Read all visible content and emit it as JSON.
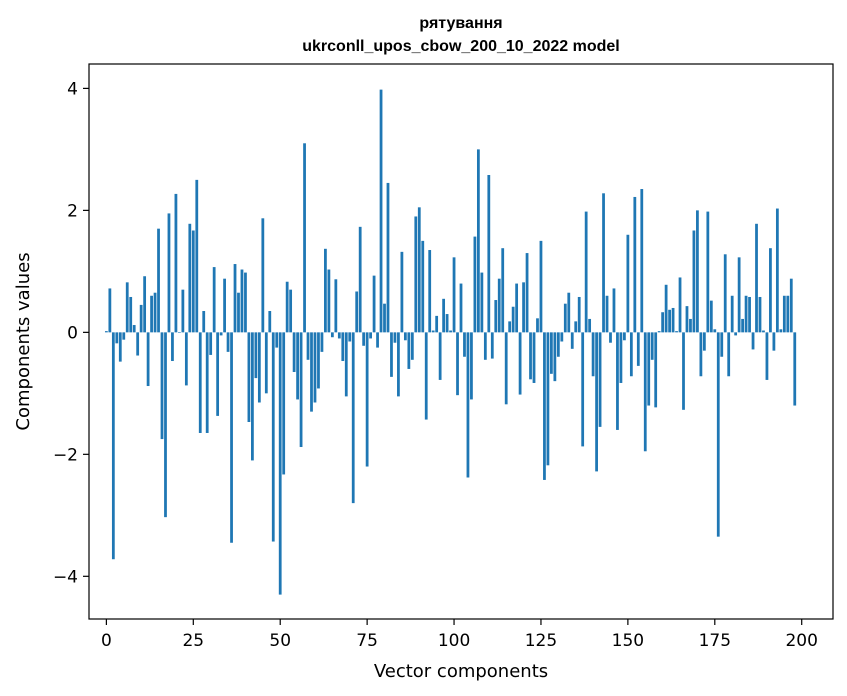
{
  "chart_data": {
    "type": "bar",
    "title": "рятування",
    "subtitle": "ukrconll_upos_cbow_200_10_2022 model",
    "xlabel": "Vector components",
    "ylabel": "Components values",
    "xlim": [
      -5,
      209
    ],
    "ylim": [
      -4.7,
      4.4
    ],
    "xticks": [
      0,
      25,
      50,
      75,
      100,
      125,
      150,
      175,
      200
    ],
    "yticks": [
      -4,
      -2,
      0,
      2,
      4
    ],
    "bar_color": "#1f77b4",
    "series": [
      {
        "name": "components",
        "values": [
          0.02,
          0.72,
          -3.72,
          -0.18,
          -0.48,
          -0.12,
          0.82,
          0.58,
          0.12,
          -0.38,
          0.45,
          0.92,
          -0.88,
          0.6,
          0.65,
          1.7,
          -1.75,
          -3.03,
          1.95,
          -0.47,
          2.27,
          0.0,
          0.7,
          -0.87,
          1.78,
          1.67,
          2.5,
          -1.65,
          0.35,
          -1.65,
          -0.37,
          1.07,
          -1.37,
          -0.05,
          0.88,
          -0.32,
          -3.45,
          1.12,
          0.65,
          1.03,
          0.98,
          -1.47,
          -2.1,
          -0.75,
          -1.15,
          1.87,
          -1.0,
          0.35,
          -3.43,
          -0.25,
          -4.3,
          -2.33,
          0.83,
          0.7,
          -0.65,
          -1.1,
          -1.88,
          3.1,
          -0.45,
          -1.3,
          -1.15,
          -0.92,
          -0.32,
          1.37,
          1.03,
          -0.08,
          0.87,
          -0.1,
          -0.47,
          -1.05,
          -0.15,
          -2.8,
          0.67,
          1.73,
          -0.22,
          -2.2,
          -0.1,
          0.93,
          -0.25,
          3.98,
          0.47,
          2.45,
          -0.73,
          -0.17,
          -1.05,
          1.32,
          -0.13,
          -0.6,
          -0.45,
          1.9,
          2.05,
          1.5,
          -1.43,
          1.35,
          0.03,
          0.27,
          -0.78,
          0.55,
          0.3,
          0.03,
          1.23,
          -1.03,
          0.8,
          -0.4,
          -2.38,
          -1.1,
          1.57,
          3.0,
          0.98,
          -0.45,
          2.58,
          -0.43,
          0.53,
          0.88,
          1.38,
          -1.18,
          0.18,
          0.42,
          0.8,
          -1.02,
          0.82,
          1.3,
          -0.77,
          -0.83,
          0.23,
          1.5,
          -2.42,
          -2.18,
          -0.68,
          -0.8,
          -0.4,
          -0.15,
          0.47,
          0.65,
          -0.27,
          0.18,
          0.58,
          -1.87,
          1.98,
          0.22,
          -0.72,
          -2.28,
          -1.55,
          2.28,
          0.6,
          -0.17,
          0.72,
          -1.6,
          -0.83,
          -0.13,
          1.6,
          -0.72,
          2.22,
          -0.55,
          2.35,
          -1.95,
          -1.2,
          -0.45,
          -1.23,
          0.02,
          0.33,
          0.78,
          0.37,
          0.4,
          0.02,
          0.9,
          -1.27,
          0.43,
          0.22,
          1.67,
          2.0,
          -0.72,
          -0.3,
          1.98,
          0.52,
          0.05,
          -3.35,
          -0.4,
          1.28,
          -0.72,
          0.6,
          -0.05,
          1.23,
          0.22,
          0.6,
          0.58,
          -0.28,
          1.78,
          0.58,
          0.03,
          -0.78,
          1.38,
          -0.3,
          2.03,
          0.05,
          0.6,
          0.6,
          0.88,
          -1.2
        ]
      }
    ]
  }
}
